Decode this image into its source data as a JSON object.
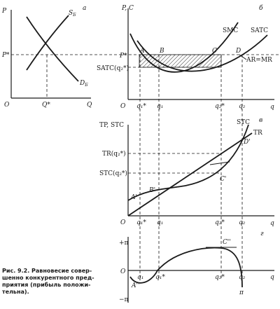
{
  "panels": {
    "a": {
      "letter": "а",
      "axis_y": "P",
      "axis_x": "Q",
      "origin": "O",
      "supply_label": "S",
      "supply_sub": "Б",
      "demand_label": "D",
      "demand_sub": "Б",
      "price_label": "P*",
      "quantity_label": "Q*"
    },
    "b": {
      "letter": "б",
      "axis_y": "P, C",
      "axis_x": "q",
      "origin": "O",
      "smc_label": "SMC",
      "satc_label": "SATC",
      "price_label": "P*",
      "satc_level_label": "SATC(q₂*)",
      "demand_line_label": "AR=MR",
      "point_labels": [
        "A",
        "B",
        "C",
        "D"
      ],
      "q_labels": [
        "q₁*",
        "q₁",
        "q₂*",
        "q₂"
      ]
    },
    "v": {
      "letter": "в",
      "axis_y": "TP, STC",
      "axis_x": "q",
      "origin": "O",
      "stc_label": "STC",
      "tr_label": "TR",
      "tr_level_label": "TR(q₂*)",
      "stc_level_label": "STC(q₂*)",
      "point_labels": [
        "A'",
        "B'",
        "C'",
        "D'"
      ],
      "q_labels": [
        "q₁*",
        "q₁",
        "q₂*",
        "q₂"
      ]
    },
    "g": {
      "letter": "г",
      "axis_y_plus": "+π",
      "axis_y_minus": "−π",
      "axis_x": "q",
      "origin": "O",
      "curve_label": "π",
      "max_point_label": "C''",
      "min_point_label": "A''",
      "q_labels": [
        "q₁",
        "q₁*",
        "q₂*",
        "q₂"
      ]
    }
  },
  "caption": {
    "lines": [
      "Рис. 9.2. Равновесие совер-",
      "шенно конкурентного пред-",
      "приятия (прибыль положи-",
      "тельна)."
    ]
  }
}
